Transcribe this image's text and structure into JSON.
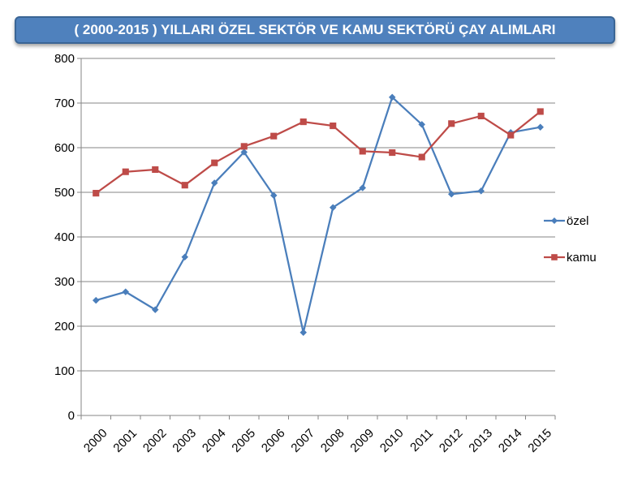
{
  "chart_data": {
    "type": "line",
    "title": "( 2000-2015 ) YILLARI ÖZEL SEKTÖR VE KAMU SEKTÖRÜ ÇAY ALIMLARI",
    "categories": [
      "2000",
      "2001",
      "2002",
      "2003",
      "2004",
      "2005",
      "2006",
      "2007",
      "2008",
      "2009",
      "2010",
      "2011",
      "2012",
      "2013",
      "2014",
      "2015"
    ],
    "ylim": [
      0,
      800
    ],
    "yticks": [
      0,
      100,
      200,
      300,
      400,
      500,
      600,
      700,
      800
    ],
    "grid": true,
    "legend_position": "right",
    "series": [
      {
        "name": "özel",
        "color": "#4a7ebb",
        "marker": "diamond",
        "values": [
          258,
          277,
          237,
          355,
          521,
          590,
          493,
          186,
          466,
          510,
          713,
          652,
          496,
          503,
          634,
          646
        ]
      },
      {
        "name": "kamu",
        "color": "#be4b48",
        "marker": "square",
        "values": [
          498,
          546,
          551,
          516,
          566,
          603,
          626,
          658,
          649,
          592,
          589,
          579,
          654,
          671,
          628,
          681
        ]
      }
    ]
  }
}
